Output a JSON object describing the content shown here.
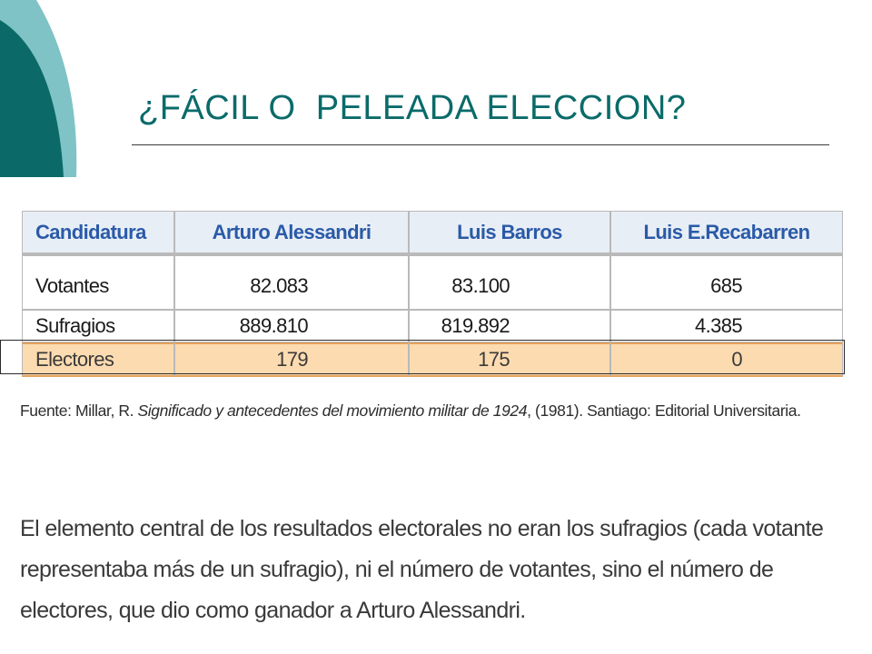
{
  "title": "¿FÁCIL O  PELEADA ELECCION?",
  "colors": {
    "title": "#0a6b6a",
    "deco_dark": "#0b6a67",
    "deco_light": "#7fc3c6",
    "header_text": "#2a5aa8",
    "highlight_row": "#fddbb0"
  },
  "table": {
    "headers": [
      "Candidatura",
      "Arturo Alessandri",
      "Luis Barros",
      "Luis E.Recabarren"
    ],
    "rows": [
      {
        "label": "Votantes",
        "values": [
          "82.083",
          "83.100",
          "685"
        ]
      },
      {
        "label": "Sufragios",
        "values": [
          "889.810",
          "819.892",
          "4.385"
        ]
      },
      {
        "label": "Electores",
        "values": [
          "179",
          "175",
          "0"
        ]
      }
    ]
  },
  "source": {
    "prefix": "Fuente: Millar, R. ",
    "italic": "Significado y antecedentes del movimiento militar de 1924",
    "suffix": ", (1981). Santiago: Editorial Universitaria."
  },
  "paragraph": {
    "lines": [
      "El elemento central de los resultados electorales no eran los sufragios (cada votante",
      "representaba más de un sufragio), ni el número de votantes, sino el número de",
      "electores, que dio como ganador a Arturo Alessandri."
    ]
  }
}
